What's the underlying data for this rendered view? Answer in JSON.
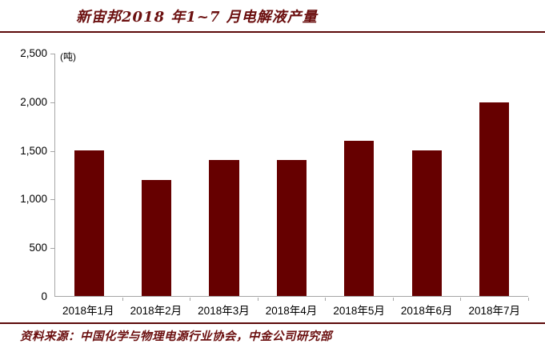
{
  "header": {
    "title": "新宙邦2018 年1~7 月电解液产量"
  },
  "footer": {
    "source": "资料来源：中国化学与物理电源行业协会，中金公司研究部"
  },
  "chart_data": {
    "type": "bar",
    "title": "新宙邦2018 年1~7 月电解液产量",
    "unit_label": "(吨)",
    "categories": [
      "2018年1月",
      "2018年2月",
      "2018年3月",
      "2018年4月",
      "2018年5月",
      "2018年6月",
      "2018年7月"
    ],
    "values": [
      1500,
      1200,
      1400,
      1400,
      1600,
      1500,
      2000
    ],
    "series_name": "电解液产量",
    "xlabel": "",
    "ylabel": "",
    "ylim": [
      0,
      2500
    ],
    "ytick_interval": 500,
    "ytick_labels": [
      "0",
      "500",
      "1,000",
      "1,500",
      "2,000",
      "2,500"
    ],
    "grid": false,
    "legend_position": "none",
    "bar_color": "#660000"
  },
  "colors": {
    "accent": "#660000",
    "bar": "#660000",
    "title_text": "#6b0f0f",
    "rule_line": "#5c0a0a",
    "axis_line": "#a6a6a6",
    "tick_text": "#000000"
  }
}
